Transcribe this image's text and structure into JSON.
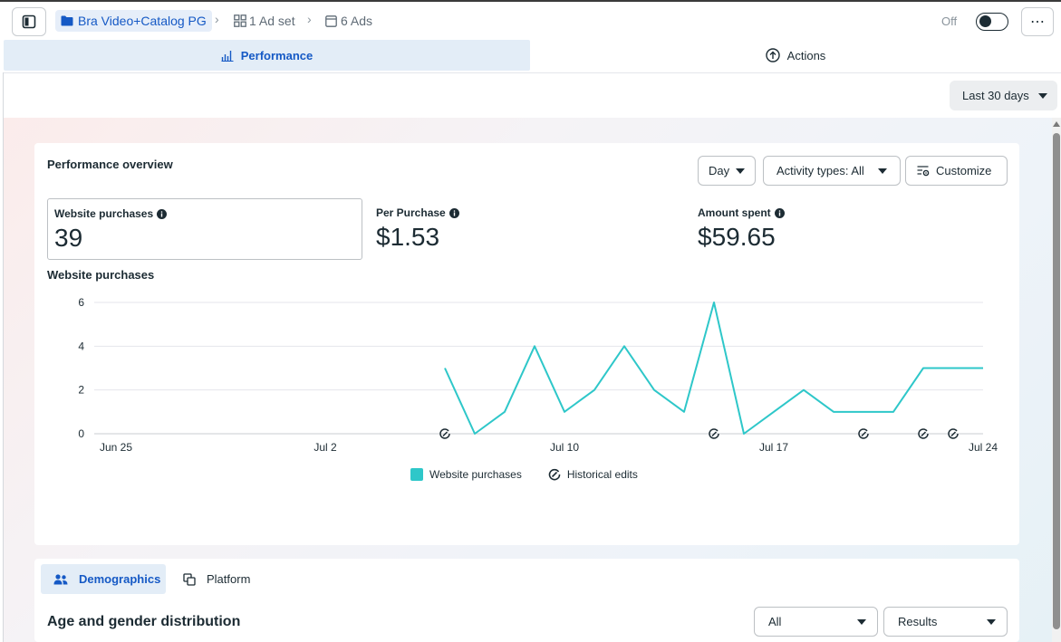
{
  "breadcrumb": {
    "campaign": "Bra Video+Catalog PG",
    "ad_set": "1 Ad set",
    "ads": "6 Ads"
  },
  "status": {
    "off_label": "Off",
    "enabled": false
  },
  "main_tabs": [
    {
      "label": "Performance",
      "active": true
    },
    {
      "label": "Actions",
      "active": false
    }
  ],
  "date_range": "Last 30 days",
  "overview": {
    "title": "Performance overview",
    "granularity": "Day",
    "activity_types": "Activity types: All",
    "customize": "Customize",
    "metrics": [
      {
        "label": "Website purchases",
        "value": "39",
        "selected": true
      },
      {
        "label": "Per Purchase",
        "value": "$1.53",
        "selected": false
      },
      {
        "label": "Amount spent",
        "value": "$59.65",
        "selected": false
      }
    ]
  },
  "chart_data": {
    "type": "line",
    "title": "Website purchases",
    "x_tick_labels": [
      "Jun 25",
      "Jul 2",
      "Jul 10",
      "Jul 17",
      "Jul 24"
    ],
    "y_ticks": [
      0,
      2,
      4,
      6
    ],
    "ylim": [
      0,
      6
    ],
    "grid": true,
    "legend_position": "bottom",
    "legend": [
      "Website purchases",
      "Historical edits"
    ],
    "series": [
      {
        "name": "Website purchases",
        "color": "#2ec7c9",
        "x": [
          "Jul 6",
          "Jul 7",
          "Jul 8",
          "Jul 9",
          "Jul 10",
          "Jul 11",
          "Jul 12",
          "Jul 13",
          "Jul 14",
          "Jul 15",
          "Jul 16",
          "Jul 17",
          "Jul 18",
          "Jul 19",
          "Jul 20",
          "Jul 21",
          "Jul 22",
          "Jul 23",
          "Jul 24"
        ],
        "values": [
          3,
          0,
          1,
          4,
          1,
          2,
          4,
          2,
          1,
          6,
          0,
          1,
          2,
          1,
          1,
          1,
          3,
          3,
          3
        ]
      }
    ],
    "historical_edits": [
      "Jul 6",
      "Jul 15",
      "Jul 20",
      "Jul 22",
      "Jul 23"
    ]
  },
  "breakdown": {
    "tabs": [
      {
        "label": "Demographics",
        "active": true
      },
      {
        "label": "Platform",
        "active": false
      }
    ],
    "title": "Age and gender distribution",
    "filter_value": "All",
    "metric_value": "Results"
  }
}
